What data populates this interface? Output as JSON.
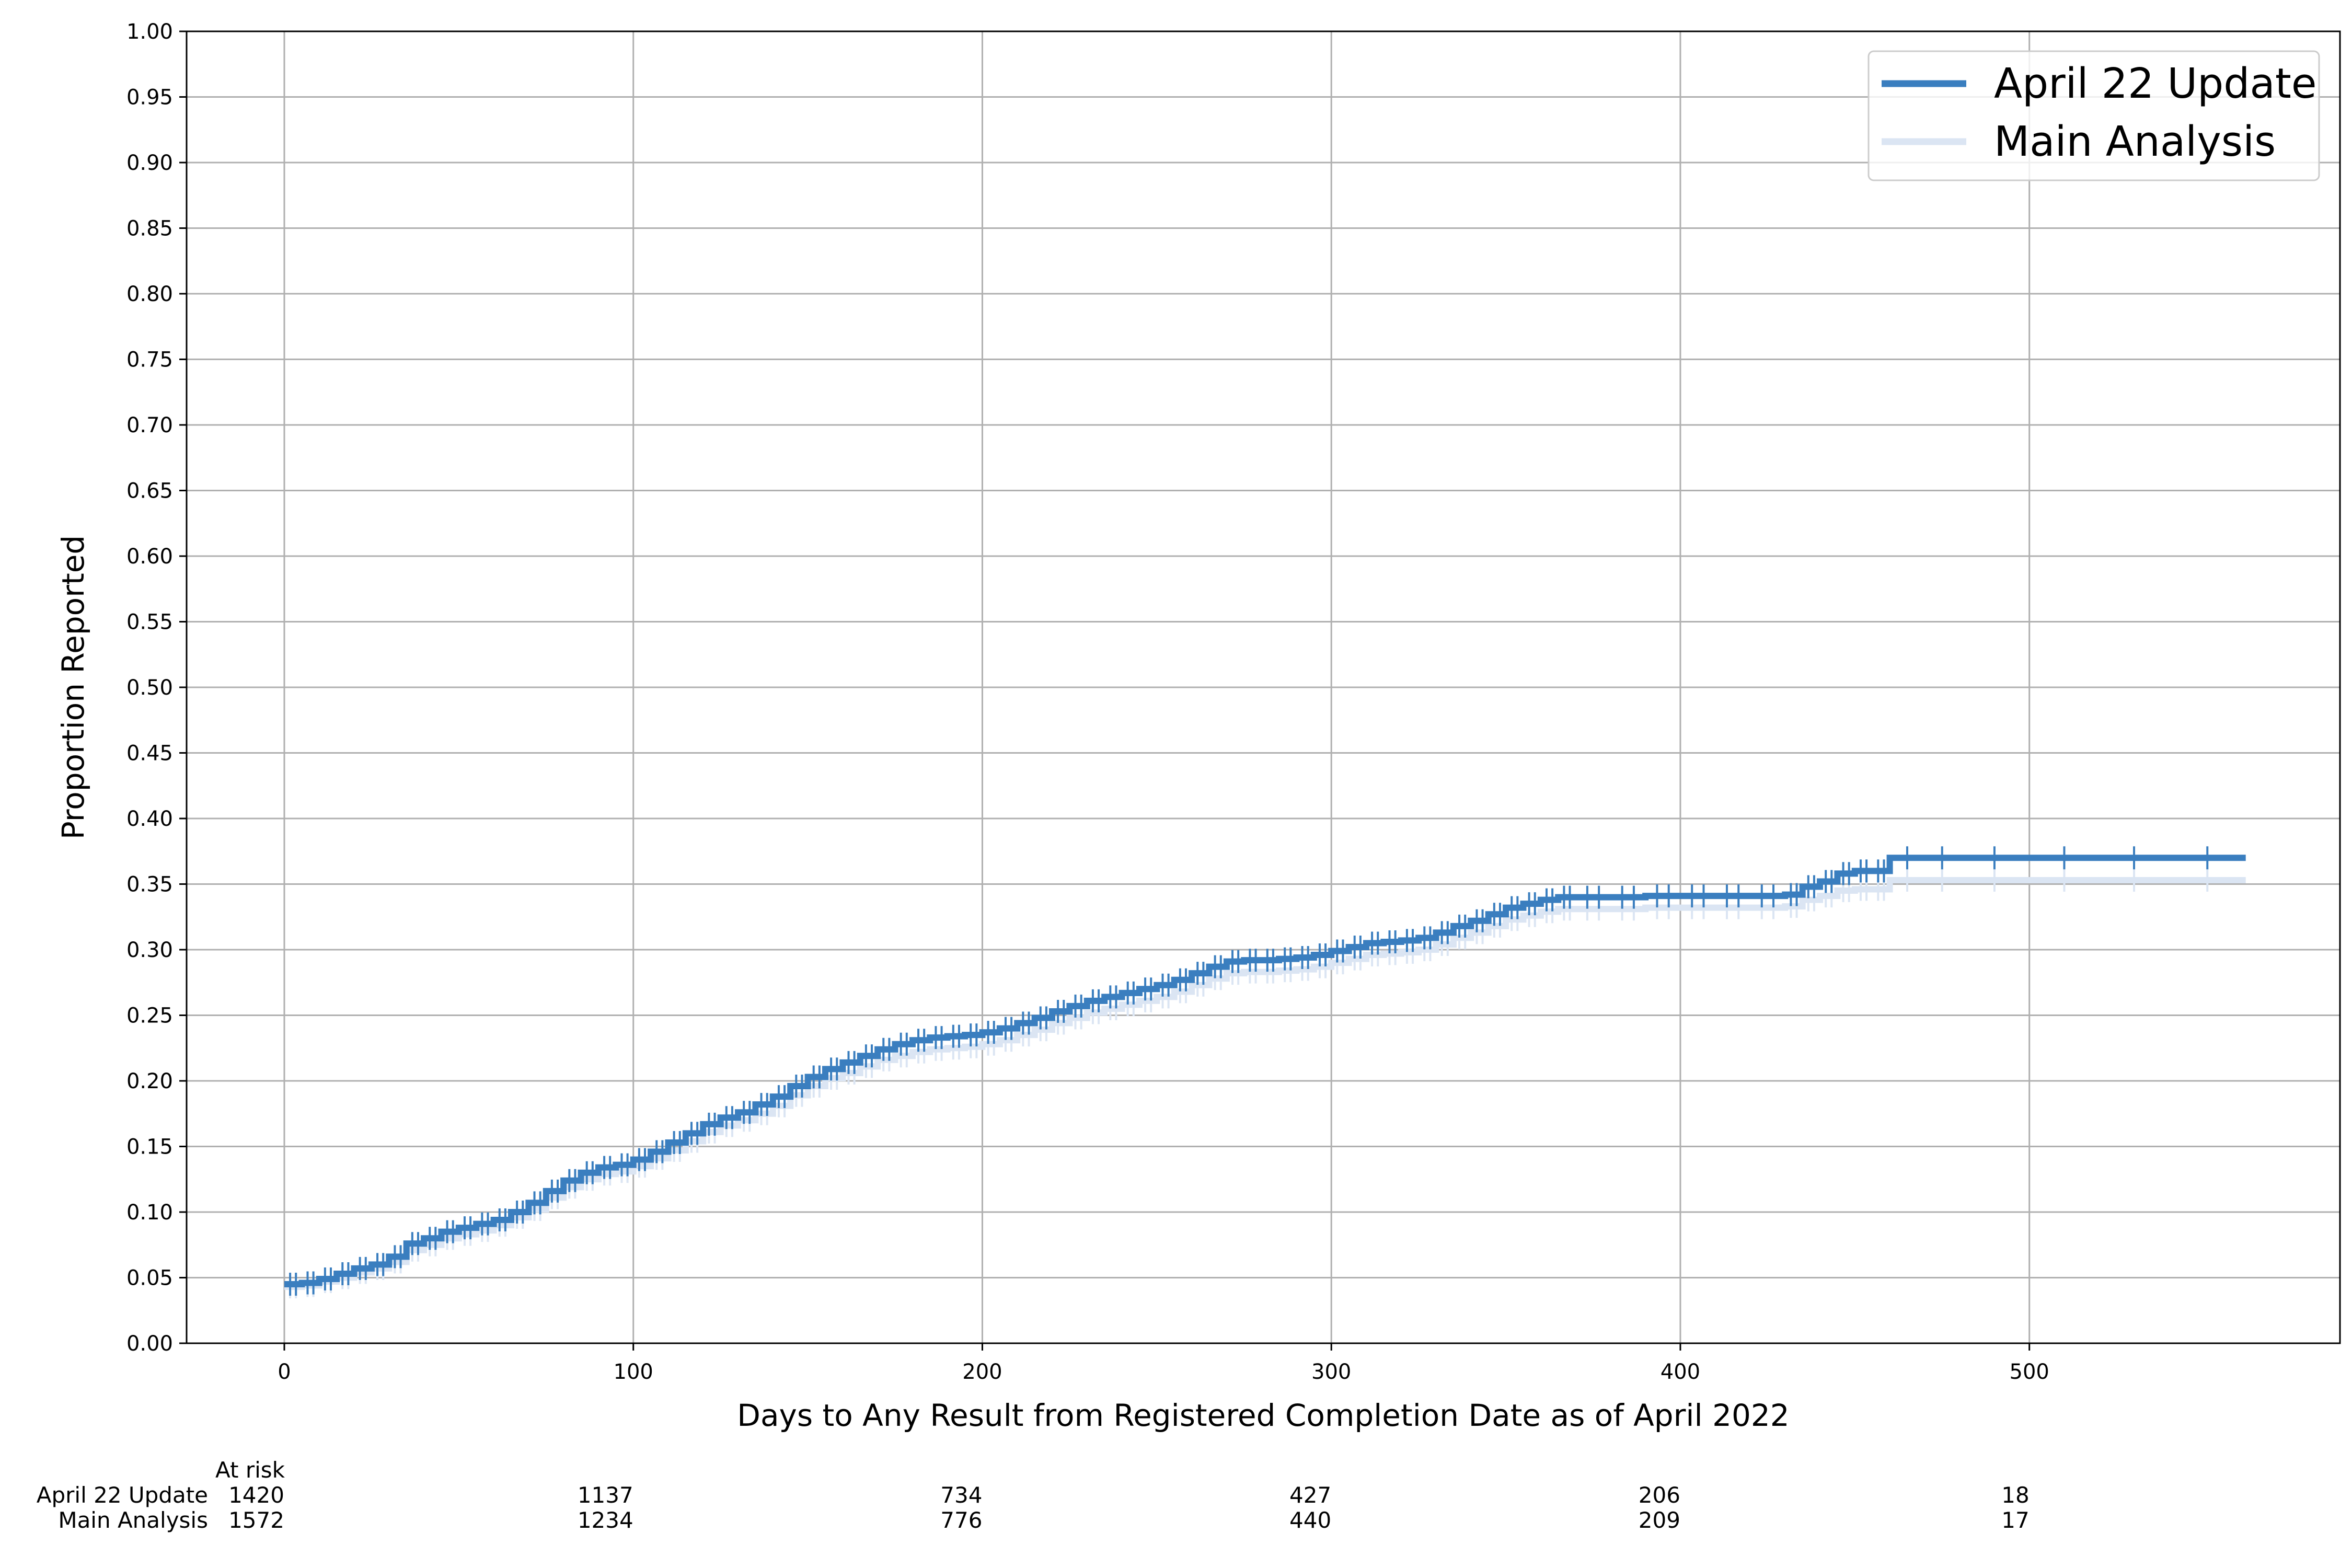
{
  "chart_data": {
    "type": "line",
    "title": "",
    "xlabel": "Days to Any Result from Registered Completion Date as of April 2022",
    "ylabel": "Proportion Reported",
    "xlim": [
      -28,
      589
    ],
    "ylim": [
      0,
      1
    ],
    "x_ticks": [
      0,
      100,
      200,
      300,
      400,
      500
    ],
    "y_ticks": [
      0.0,
      0.05,
      0.1,
      0.15,
      0.2,
      0.25,
      0.3,
      0.35,
      0.4,
      0.45,
      0.5,
      0.55,
      0.6,
      0.65,
      0.7,
      0.75,
      0.8,
      0.85,
      0.9,
      0.95,
      1.0
    ],
    "grid": true,
    "legend_position": "top-right",
    "step": true,
    "censor_marks": true,
    "series": [
      {
        "name": "April 22 Update",
        "color": "#3a7ebf",
        "x": [
          0,
          5,
          10,
          15,
          20,
          25,
          30,
          35,
          40,
          45,
          50,
          55,
          60,
          65,
          70,
          75,
          80,
          85,
          90,
          95,
          100,
          105,
          110,
          115,
          120,
          125,
          130,
          135,
          140,
          145,
          150,
          155,
          160,
          165,
          170,
          175,
          180,
          185,
          190,
          195,
          200,
          205,
          210,
          215,
          220,
          225,
          230,
          235,
          240,
          245,
          250,
          255,
          260,
          265,
          270,
          275,
          280,
          285,
          290,
          295,
          300,
          305,
          310,
          315,
          320,
          325,
          330,
          335,
          340,
          345,
          350,
          355,
          360,
          365,
          370,
          380,
          390,
          400,
          410,
          420,
          430,
          435,
          440,
          445,
          450,
          455,
          460,
          470,
          480,
          500,
          520,
          540,
          562
        ],
        "y": [
          0.045,
          0.046,
          0.049,
          0.053,
          0.057,
          0.06,
          0.066,
          0.076,
          0.08,
          0.085,
          0.088,
          0.091,
          0.094,
          0.1,
          0.107,
          0.116,
          0.124,
          0.13,
          0.134,
          0.136,
          0.14,
          0.146,
          0.153,
          0.16,
          0.167,
          0.172,
          0.176,
          0.182,
          0.188,
          0.196,
          0.203,
          0.209,
          0.214,
          0.219,
          0.224,
          0.228,
          0.231,
          0.233,
          0.234,
          0.235,
          0.237,
          0.24,
          0.244,
          0.248,
          0.253,
          0.257,
          0.261,
          0.264,
          0.267,
          0.27,
          0.273,
          0.277,
          0.282,
          0.287,
          0.291,
          0.292,
          0.292,
          0.293,
          0.294,
          0.296,
          0.299,
          0.302,
          0.305,
          0.306,
          0.307,
          0.309,
          0.313,
          0.318,
          0.322,
          0.327,
          0.332,
          0.335,
          0.338,
          0.34,
          0.34,
          0.34,
          0.341,
          0.341,
          0.341,
          0.341,
          0.342,
          0.348,
          0.352,
          0.358,
          0.36,
          0.36,
          0.37,
          0.37,
          0.37,
          0.37,
          0.37,
          0.37,
          0.37
        ]
      },
      {
        "name": "Main Analysis",
        "color": "#dbe5f3",
        "x": [
          0,
          5,
          10,
          15,
          20,
          25,
          30,
          35,
          40,
          45,
          50,
          55,
          60,
          65,
          70,
          75,
          80,
          85,
          90,
          95,
          100,
          105,
          110,
          115,
          120,
          125,
          130,
          135,
          140,
          145,
          150,
          155,
          160,
          165,
          170,
          175,
          180,
          185,
          190,
          195,
          200,
          205,
          210,
          215,
          220,
          225,
          230,
          235,
          240,
          245,
          250,
          255,
          260,
          265,
          270,
          275,
          280,
          285,
          290,
          295,
          300,
          305,
          310,
          315,
          320,
          325,
          330,
          335,
          340,
          345,
          350,
          355,
          360,
          365,
          370,
          380,
          390,
          400,
          410,
          420,
          430,
          435,
          440,
          445,
          450,
          455,
          460,
          470,
          480,
          500,
          520,
          540,
          562
        ],
        "y": [
          0.043,
          0.044,
          0.047,
          0.05,
          0.054,
          0.057,
          0.062,
          0.071,
          0.075,
          0.08,
          0.083,
          0.086,
          0.09,
          0.096,
          0.102,
          0.111,
          0.119,
          0.125,
          0.129,
          0.131,
          0.135,
          0.141,
          0.147,
          0.154,
          0.161,
          0.166,
          0.17,
          0.175,
          0.181,
          0.189,
          0.196,
          0.202,
          0.206,
          0.211,
          0.216,
          0.219,
          0.222,
          0.224,
          0.225,
          0.226,
          0.228,
          0.231,
          0.235,
          0.239,
          0.244,
          0.248,
          0.252,
          0.255,
          0.258,
          0.261,
          0.264,
          0.268,
          0.273,
          0.278,
          0.282,
          0.283,
          0.283,
          0.284,
          0.285,
          0.287,
          0.29,
          0.293,
          0.296,
          0.297,
          0.298,
          0.3,
          0.304,
          0.309,
          0.313,
          0.318,
          0.323,
          0.326,
          0.329,
          0.331,
          0.331,
          0.331,
          0.332,
          0.332,
          0.332,
          0.332,
          0.333,
          0.338,
          0.341,
          0.345,
          0.346,
          0.346,
          0.353,
          0.353,
          0.353,
          0.353,
          0.353,
          0.353,
          0.353
        ]
      }
    ],
    "at_risk": {
      "label": "At risk",
      "times": [
        0,
        100,
        200,
        300,
        400,
        500
      ],
      "rows": [
        {
          "name": "April 22 Update",
          "counts": [
            1420,
            1137,
            734,
            427,
            206,
            18
          ]
        },
        {
          "name": "Main Analysis",
          "counts": [
            1572,
            1234,
            776,
            440,
            209,
            17
          ]
        }
      ]
    }
  }
}
